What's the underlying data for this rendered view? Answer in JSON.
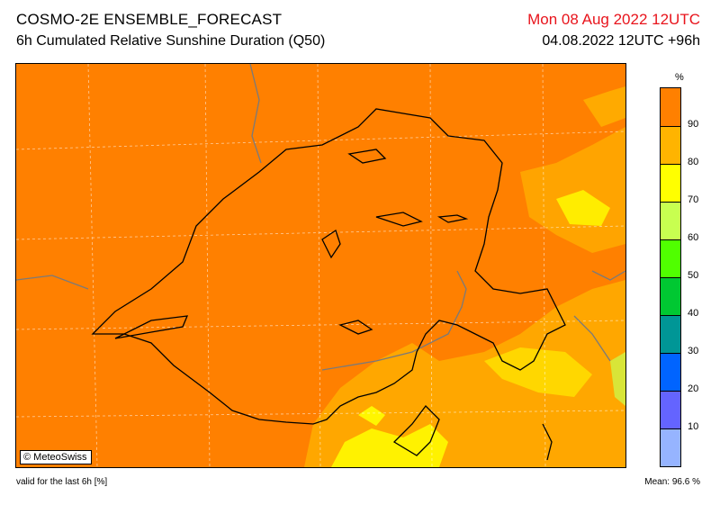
{
  "header": {
    "title": "COSMO-2E ENSEMBLE_FORECAST",
    "subtitle": "6h Cumulated Relative Sunshine Duration (Q50)",
    "valid_date": "Mon 08 Aug 2022 12UTC",
    "run_info": "04.08.2022 12UTC +96h"
  },
  "map": {
    "copyright": "© MeteoSwiss",
    "base_color": "#ff8000",
    "grid": true
  },
  "legend": {
    "unit": "%",
    "labels": [
      "90",
      "80",
      "70",
      "60",
      "50",
      "40",
      "30",
      "20",
      "10"
    ],
    "colors": [
      "#ff8000",
      "#ffb400",
      "#ffff00",
      "#c8ff50",
      "#50ff00",
      "#00c832",
      "#009696",
      "#0064ff",
      "#6464ff",
      "#96b4ff"
    ]
  },
  "footer": {
    "validity": "valid for the last 6h [%]",
    "mean": "Mean:   96.6 %"
  }
}
